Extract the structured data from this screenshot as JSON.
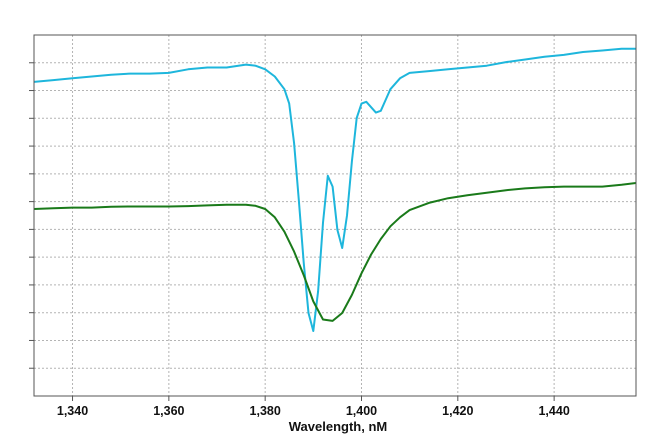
{
  "chart_data": {
    "type": "line",
    "title": "",
    "xlabel": "Wavelength, nM",
    "ylabel": "",
    "xlim": [
      1332,
      1457
    ],
    "ylim": [
      0,
      1
    ],
    "x_ticks": [
      1340,
      1360,
      1380,
      1400,
      1420,
      1440
    ],
    "x_tick_labels": [
      "1,340",
      "1,360",
      "1,380",
      "1,400",
      "1,420",
      "1,440"
    ],
    "y_grid_count": 13,
    "grid": true,
    "legend": "none",
    "series": [
      {
        "color": "#1eb6dc",
        "x": [
          1332,
          1336,
          1340,
          1344,
          1348,
          1352,
          1356,
          1360,
          1364,
          1368,
          1372,
          1376,
          1378,
          1380,
          1382,
          1384,
          1385,
          1386,
          1387,
          1388,
          1389,
          1390,
          1391,
          1392,
          1393,
          1394,
          1395,
          1396,
          1397,
          1398,
          1399,
          1400,
          1401,
          1402,
          1403,
          1404,
          1405,
          1406,
          1408,
          1410,
          1414,
          1418,
          1422,
          1426,
          1430,
          1434,
          1438,
          1442,
          1446,
          1450,
          1454,
          1457
        ],
        "y": [
          0.87,
          0.875,
          0.88,
          0.885,
          0.89,
          0.893,
          0.893,
          0.895,
          0.905,
          0.91,
          0.91,
          0.918,
          0.915,
          0.905,
          0.885,
          0.85,
          0.81,
          0.7,
          0.54,
          0.37,
          0.23,
          0.18,
          0.29,
          0.48,
          0.61,
          0.58,
          0.46,
          0.41,
          0.5,
          0.65,
          0.77,
          0.81,
          0.815,
          0.8,
          0.785,
          0.79,
          0.82,
          0.85,
          0.88,
          0.895,
          0.9,
          0.905,
          0.91,
          0.915,
          0.925,
          0.932,
          0.94,
          0.945,
          0.953,
          0.957,
          0.962,
          0.962
        ]
      },
      {
        "color": "#1a7a1a",
        "x": [
          1332,
          1336,
          1340,
          1344,
          1348,
          1352,
          1356,
          1360,
          1364,
          1368,
          1372,
          1376,
          1378,
          1380,
          1382,
          1384,
          1386,
          1388,
          1390,
          1392,
          1394,
          1396,
          1398,
          1400,
          1402,
          1404,
          1406,
          1408,
          1410,
          1414,
          1418,
          1422,
          1426,
          1430,
          1434,
          1438,
          1442,
          1446,
          1450,
          1454,
          1457
        ],
        "y": [
          0.518,
          0.52,
          0.522,
          0.522,
          0.524,
          0.525,
          0.525,
          0.525,
          0.526,
          0.528,
          0.53,
          0.53,
          0.527,
          0.518,
          0.495,
          0.455,
          0.4,
          0.335,
          0.262,
          0.212,
          0.208,
          0.23,
          0.28,
          0.34,
          0.392,
          0.435,
          0.47,
          0.495,
          0.515,
          0.535,
          0.548,
          0.556,
          0.563,
          0.57,
          0.575,
          0.578,
          0.58,
          0.58,
          0.58,
          0.585,
          0.59
        ]
      }
    ]
  }
}
